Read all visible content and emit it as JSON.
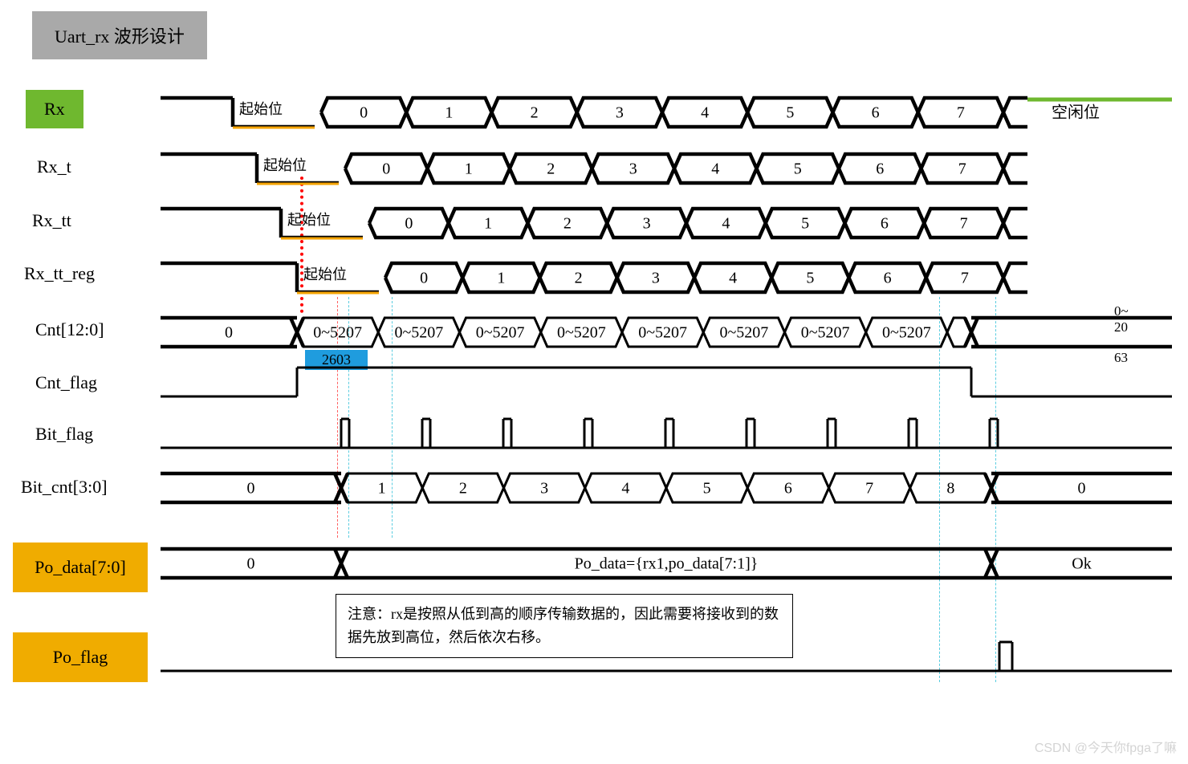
{
  "title": "Uart_rx 波形设计",
  "signals": {
    "rx": {
      "label": "Rx",
      "start": "起始位",
      "bits": [
        "0",
        "1",
        "2",
        "3",
        "4",
        "5",
        "6",
        "7"
      ],
      "tail": "空闲位"
    },
    "rx_t": {
      "label": "Rx_t",
      "start": "起始位",
      "bits": [
        "0",
        "1",
        "2",
        "3",
        "4",
        "5",
        "6",
        "7"
      ]
    },
    "rx_tt": {
      "label": "Rx_tt",
      "start": "起始位",
      "bits": [
        "0",
        "1",
        "2",
        "3",
        "4",
        "5",
        "6",
        "7"
      ]
    },
    "rx_tt_reg": {
      "label": "Rx_tt_reg",
      "start": "起始位",
      "bits": [
        "0",
        "1",
        "2",
        "3",
        "4",
        "5",
        "6",
        "7"
      ]
    },
    "cnt": {
      "label": "Cnt[12:0]",
      "first": "0",
      "cells": [
        "0~5207",
        "0~5207",
        "0~5207",
        "0~5207",
        "0~5207",
        "0~5207",
        "0~5207",
        "0~5207"
      ],
      "last_top": "0~",
      "last_mid": "20",
      "last_bot": "63",
      "mid_marker": "2603"
    },
    "cnt_flag": {
      "label": "Cnt_flag"
    },
    "bit_flag": {
      "label": "Bit_flag"
    },
    "bit_cnt": {
      "label": "Bit_cnt[3:0]",
      "first": "0",
      "cells": [
        "1",
        "2",
        "3",
        "4",
        "5",
        "6",
        "7",
        "8"
      ],
      "last": "0"
    },
    "po_data": {
      "label": "Po_data[7:0]",
      "first": "0",
      "mid": "Po_data={rx1,po_data[7:1]}",
      "last": "Ok"
    },
    "po_flag": {
      "label": "Po_flag"
    }
  },
  "note": "注意：rx是按照从低到高的顺序传输数据的，因此需要将接收到的数据先放到高位，然后依次右移。",
  "watermark": "CSDN @今天你fpga了嘛",
  "colors": {
    "stroke": "#000000",
    "orange_line": "#f5a400",
    "green_line": "#6fb82f"
  },
  "geometry": {
    "stroke_w": 4.5,
    "thin_w": 3
  }
}
